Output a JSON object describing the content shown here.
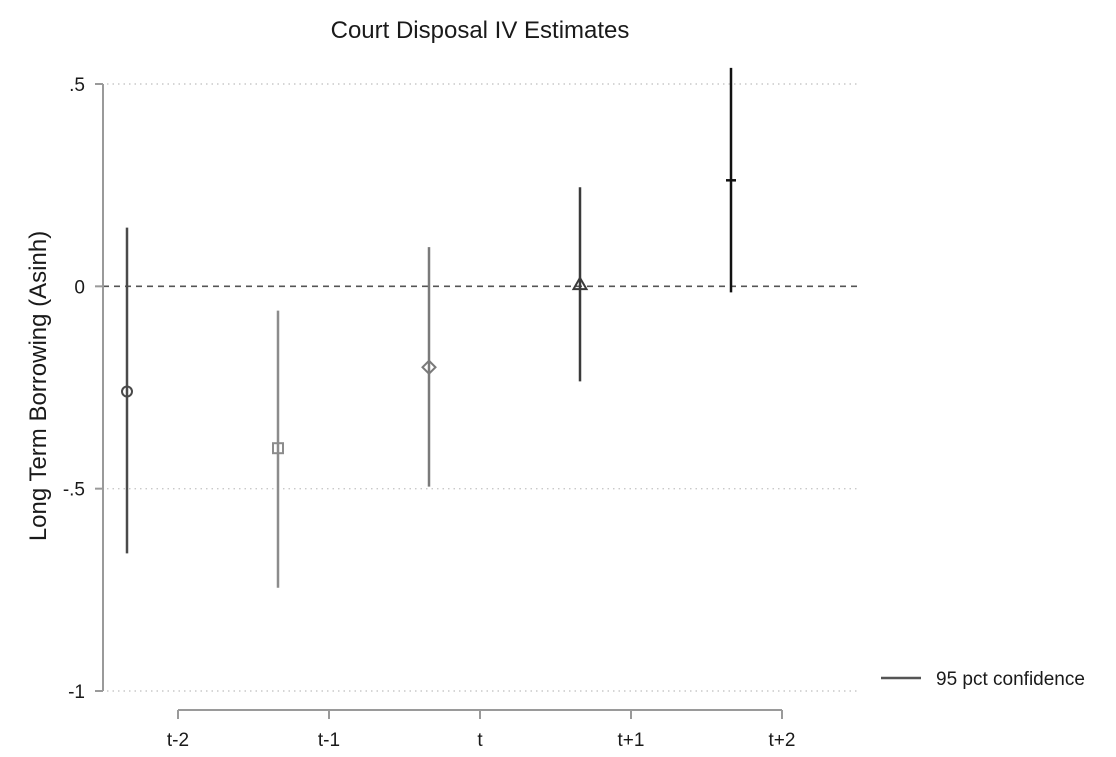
{
  "chart_data": {
    "type": "scatter",
    "title": "Court Disposal IV Estimates",
    "xlabel": "",
    "ylabel": "Long Term Borrowing (Asinh)",
    "categories": [
      "t-2",
      "t-1",
      "t",
      "t+1",
      "t+2"
    ],
    "ylim": [
      -1,
      0.5
    ],
    "yticks": [
      {
        "value": 0.5,
        "label": ".5"
      },
      {
        "value": 0,
        "label": "0"
      },
      {
        "value": -0.5,
        "label": "-.5"
      },
      {
        "value": -1,
        "label": "-1"
      }
    ],
    "grid": "horizontal dotted",
    "reference_line": {
      "y": 0,
      "style": "dashed"
    },
    "points": [
      {
        "category": "t-2",
        "estimate": -0.26,
        "ci_low": -0.66,
        "ci_high": 0.145,
        "marker": "circle",
        "color": "#4a4a4a"
      },
      {
        "category": "t-1",
        "estimate": -0.4,
        "ci_low": -0.745,
        "ci_high": -0.06,
        "marker": "square",
        "color": "#8c8c8c"
      },
      {
        "category": "t",
        "estimate": -0.2,
        "ci_low": -0.495,
        "ci_high": 0.097,
        "marker": "diamond",
        "color": "#7a7a7a"
      },
      {
        "category": "t+1",
        "estimate": 0.005,
        "ci_low": -0.235,
        "ci_high": 0.245,
        "marker": "triangle",
        "color": "#3a3a3a"
      },
      {
        "category": "t+2",
        "estimate": 0.262,
        "ci_low": -0.015,
        "ci_high": 0.54,
        "marker": "dash",
        "color": "#111111"
      }
    ],
    "legend": {
      "position": "right",
      "entries": [
        {
          "label": "95 pct confidence",
          "color": "#555555"
        }
      ]
    }
  }
}
